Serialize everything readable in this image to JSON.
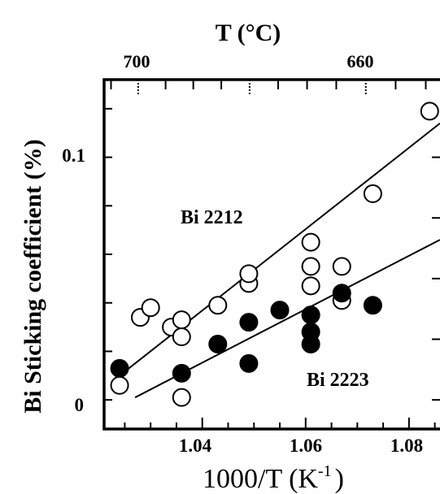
{
  "chart_data": {
    "type": "scatter",
    "title": "",
    "xlabel": "1000/T (K",
    "xlabel_sup": "-1",
    "xlabel_close": ")",
    "ylabel": "Bi Sticking coefficient (%)",
    "top_axis_label": "T (°C)",
    "top_ticks": [
      "700",
      "660"
    ],
    "x_ticks": [
      "1.04",
      "1.06",
      "1.08"
    ],
    "y_ticks": [
      "0",
      "0.1"
    ],
    "xlim": [
      1.021,
      1.086
    ],
    "ylim": [
      -0.012,
      0.132
    ],
    "series": [
      {
        "name": "Bi 2212",
        "marker": "open-circle",
        "points": [
          [
            1.024,
            0.006
          ],
          [
            1.028,
            0.034
          ],
          [
            1.03,
            0.038
          ],
          [
            1.034,
            0.03
          ],
          [
            1.036,
            0.026
          ],
          [
            1.036,
            0.033
          ],
          [
            1.036,
            0.001
          ],
          [
            1.043,
            0.039
          ],
          [
            1.049,
            0.048
          ],
          [
            1.049,
            0.052
          ],
          [
            1.061,
            0.047
          ],
          [
            1.061,
            0.055
          ],
          [
            1.061,
            0.065
          ],
          [
            1.067,
            0.055
          ],
          [
            1.067,
            0.041
          ],
          [
            1.073,
            0.085
          ],
          [
            1.084,
            0.119
          ]
        ],
        "fit": [
          [
            1.024,
            0.01
          ],
          [
            1.086,
            0.114
          ]
        ]
      },
      {
        "name": "Bi 2223",
        "marker": "filled-circle",
        "points": [
          [
            1.024,
            0.013
          ],
          [
            1.036,
            0.011
          ],
          [
            1.043,
            0.023
          ],
          [
            1.049,
            0.032
          ],
          [
            1.049,
            0.015
          ],
          [
            1.055,
            0.037
          ],
          [
            1.061,
            0.035
          ],
          [
            1.061,
            0.028
          ],
          [
            1.061,
            0.023
          ],
          [
            1.067,
            0.044
          ],
          [
            1.073,
            0.039
          ]
        ],
        "fit": [
          [
            1.027,
            0.001
          ],
          [
            1.086,
            0.066
          ]
        ]
      }
    ],
    "annotations": [
      {
        "text": "Bi 2212",
        "x": 1.038,
        "y": 0.073
      },
      {
        "text": "Bi 2223",
        "x": 1.063,
        "y": 0.008
      }
    ],
    "grid": false,
    "legend": "none"
  }
}
